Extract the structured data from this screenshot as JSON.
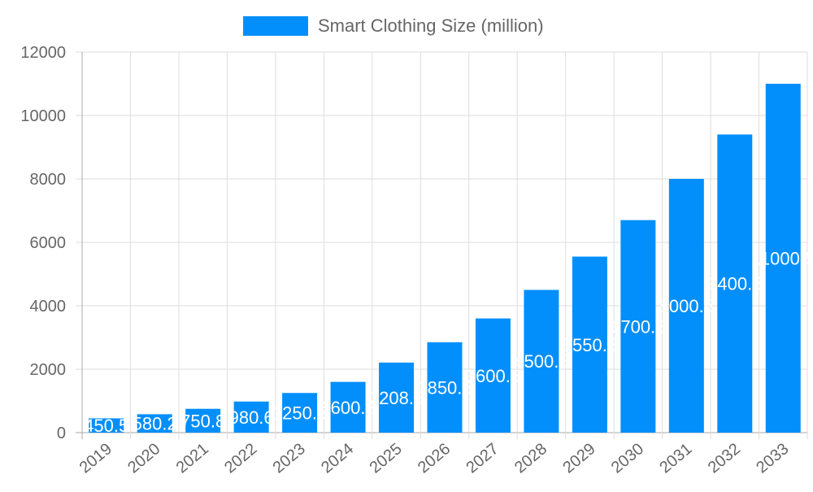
{
  "chart_data": {
    "type": "bar",
    "title": "",
    "xlabel": "",
    "ylabel": "",
    "legend": {
      "position": "top",
      "entries": [
        "Smart Clothing Size (million)"
      ]
    },
    "categories": [
      "2019",
      "2020",
      "2021",
      "2022",
      "2023",
      "2024",
      "2025",
      "2026",
      "2027",
      "2028",
      "2029",
      "2030",
      "2031",
      "2032",
      "2033"
    ],
    "series": [
      {
        "name": "Smart Clothing Size (million)",
        "color": "#038ffb",
        "values": [
          450.5,
          580.2,
          750.8,
          980.6,
          1250.5,
          1600.5,
          2208.5,
          2850.5,
          3600.5,
          4500.5,
          5550.5,
          6700.5,
          8000.5,
          9400.5,
          11000.5
        ]
      }
    ],
    "ylim": [
      0,
      12000
    ],
    "yticks": [
      0,
      2000,
      4000,
      6000,
      8000,
      10000,
      12000
    ],
    "grid": true,
    "data_labels": true
  }
}
